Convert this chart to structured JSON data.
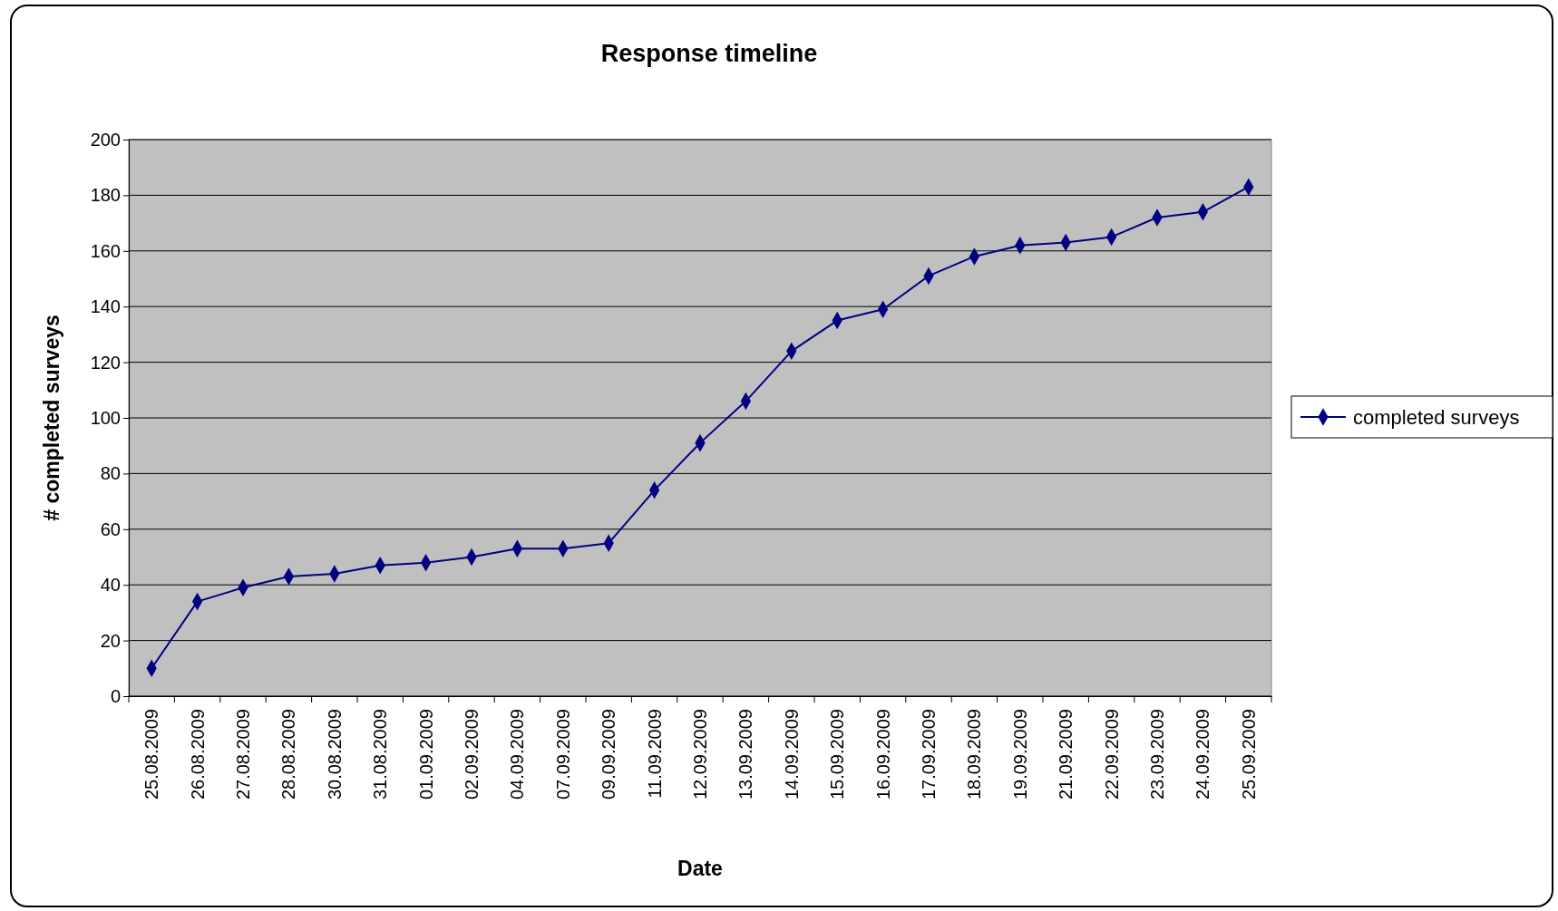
{
  "chart_data": {
    "type": "line",
    "title": "Response timeline",
    "xlabel": "Date",
    "ylabel": "# completed surveys",
    "categories": [
      "25.08.2009",
      "26.08.2009",
      "27.08.2009",
      "28.08.2009",
      "30.08.2009",
      "31.08.2009",
      "01.09.2009",
      "02.09.2009",
      "04.09.2009",
      "07.09.2009",
      "09.09.2009",
      "11.09.2009",
      "12.09.2009",
      "13.09.2009",
      "14.09.2009",
      "15.09.2009",
      "16.09.2009",
      "17.09.2009",
      "18.09.2009",
      "19.09.2009",
      "21.09.2009",
      "22.09.2009",
      "23.09.2009",
      "24.09.2009",
      "25.09.2009"
    ],
    "series": [
      {
        "name": "completed surveys",
        "color": "#000080",
        "values": [
          10,
          34,
          39,
          43,
          44,
          47,
          48,
          50,
          53,
          53,
          55,
          74,
          91,
          106,
          124,
          135,
          139,
          151,
          158,
          162,
          163,
          165,
          172,
          174,
          183
        ]
      }
    ],
    "ylim": [
      0,
      200
    ],
    "yticks": [
      0,
      20,
      40,
      60,
      80,
      100,
      120,
      140,
      160,
      180,
      200
    ],
    "grid": "y",
    "legend": "right",
    "marker": "diamond",
    "line_style": "solid"
  }
}
